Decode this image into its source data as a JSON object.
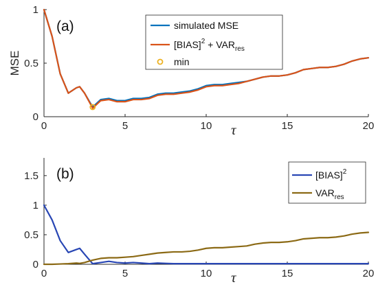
{
  "chart_data": [
    {
      "type": "line",
      "panel_label": "(a)",
      "xlabel": "τ",
      "ylabel": "MSE",
      "xlim": [
        0,
        20
      ],
      "ylim": [
        0,
        1
      ],
      "xticks": [
        "0",
        "5",
        "10",
        "15",
        "20"
      ],
      "yticks": [
        "0",
        "0.5",
        "1"
      ],
      "x": [
        0,
        0.5,
        1,
        1.5,
        2,
        2.2,
        2.5,
        3,
        3.5,
        4,
        4.5,
        5,
        5.5,
        6,
        6.5,
        7,
        7.5,
        8,
        8.5,
        9,
        9.5,
        10,
        10.5,
        11,
        11.5,
        12,
        12.5,
        13,
        13.5,
        14,
        14.5,
        15,
        15.5,
        16,
        16.5,
        17,
        17.5,
        18,
        18.5,
        19,
        19.5,
        20
      ],
      "series": [
        {
          "name": "simulated MSE",
          "color": "#0072BD",
          "values": [
            1.0,
            0.75,
            0.4,
            0.22,
            0.27,
            0.28,
            0.22,
            0.09,
            0.16,
            0.17,
            0.15,
            0.15,
            0.17,
            0.17,
            0.18,
            0.21,
            0.22,
            0.22,
            0.23,
            0.24,
            0.26,
            0.29,
            0.3,
            0.3,
            0.31,
            0.32,
            0.33,
            0.35,
            0.37,
            0.38,
            0.38,
            0.39,
            0.41,
            0.44,
            0.45,
            0.46,
            0.46,
            0.47,
            0.49,
            0.52,
            0.54,
            0.55
          ]
        },
        {
          "name": "[BIAS]² + VARres",
          "color": "#D95319",
          "values": [
            1.0,
            0.75,
            0.4,
            0.22,
            0.27,
            0.28,
            0.22,
            0.08,
            0.15,
            0.16,
            0.14,
            0.14,
            0.16,
            0.16,
            0.17,
            0.2,
            0.21,
            0.21,
            0.22,
            0.23,
            0.25,
            0.28,
            0.29,
            0.29,
            0.3,
            0.31,
            0.33,
            0.35,
            0.37,
            0.38,
            0.38,
            0.39,
            0.41,
            0.44,
            0.45,
            0.46,
            0.46,
            0.47,
            0.49,
            0.52,
            0.54,
            0.55
          ]
        }
      ],
      "min_marker": {
        "name": "min",
        "x": 3.0,
        "y": 0.09,
        "color": "#EDB120"
      },
      "legend": {
        "location": "top-right",
        "entries": [
          {
            "text": "simulated MSE",
            "sup": "",
            "sub": ""
          },
          {
            "text": "[BIAS]",
            "sup": "2",
            "rest": " + VAR",
            "sub": "res"
          },
          {
            "text": "min",
            "sup": "",
            "sub": ""
          }
        ]
      },
      "grid": false
    },
    {
      "type": "line",
      "panel_label": "(b)",
      "xlabel": "τ",
      "ylabel": "",
      "xlim": [
        0,
        20
      ],
      "ylim": [
        0,
        1.8
      ],
      "xticks": [
        "0",
        "5",
        "10",
        "15",
        "20"
      ],
      "yticks": [
        "0",
        "0.5",
        "1",
        "1.5"
      ],
      "x": [
        0,
        0.5,
        1,
        1.5,
        2,
        2.2,
        2.5,
        3,
        3.5,
        4,
        4.5,
        5,
        5.5,
        6,
        6.5,
        7,
        7.5,
        8,
        8.5,
        9,
        9.5,
        10,
        10.5,
        11,
        11.5,
        12,
        12.5,
        13,
        13.5,
        14,
        14.5,
        15,
        15.5,
        16,
        16.5,
        17,
        17.5,
        18,
        18.5,
        19,
        19.5,
        20
      ],
      "series": [
        {
          "name": "[BIAS]²",
          "color": "#2846B4",
          "values": [
            1.0,
            0.75,
            0.4,
            0.2,
            0.25,
            0.27,
            0.17,
            0.01,
            0.03,
            0.05,
            0.03,
            0.02,
            0.03,
            0.02,
            0.01,
            0.02,
            0.015,
            0.01,
            0.01,
            0.01,
            0.01,
            0.01,
            0.01,
            0.01,
            0.01,
            0.01,
            0.01,
            0.01,
            0.01,
            0.01,
            0.01,
            0.01,
            0.01,
            0.01,
            0.01,
            0.01,
            0.01,
            0.01,
            0.01,
            0.01,
            0.01,
            0.01
          ]
        },
        {
          "name": "VARres",
          "color": "#8B6914",
          "values": [
            0.0,
            0.0,
            0.005,
            0.01,
            0.02,
            0.015,
            0.03,
            0.07,
            0.1,
            0.11,
            0.11,
            0.12,
            0.13,
            0.15,
            0.17,
            0.19,
            0.2,
            0.21,
            0.21,
            0.22,
            0.24,
            0.27,
            0.28,
            0.28,
            0.29,
            0.3,
            0.31,
            0.34,
            0.36,
            0.37,
            0.37,
            0.38,
            0.4,
            0.43,
            0.44,
            0.45,
            0.45,
            0.46,
            0.48,
            0.51,
            0.53,
            0.54
          ]
        }
      ],
      "legend": {
        "location": "top-right",
        "entries": [
          {
            "text": "[BIAS]",
            "sup": "2",
            "sub": ""
          },
          {
            "text": "VAR",
            "sup": "",
            "sub": "res"
          }
        ]
      },
      "grid": false
    }
  ]
}
